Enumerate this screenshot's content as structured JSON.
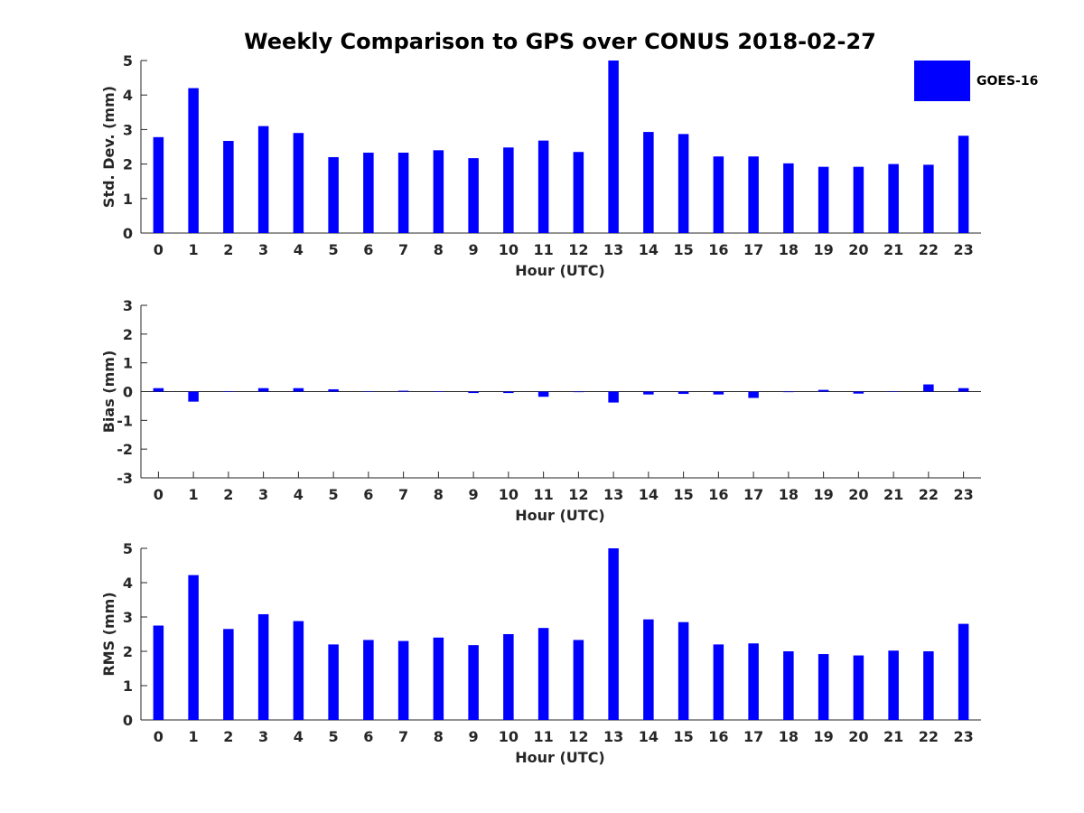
{
  "title": "Weekly Comparison to GPS over CONUS 2018-02-27",
  "legend": {
    "label": "GOES-16",
    "color": "#0000ff"
  },
  "chart_data": [
    {
      "type": "bar",
      "title": "Weekly Comparison to GPS over CONUS 2018-02-27",
      "xlabel": "Hour (UTC)",
      "ylabel": "Std. Dev. (mm)",
      "categories": [
        "0",
        "1",
        "2",
        "3",
        "4",
        "5",
        "6",
        "7",
        "8",
        "9",
        "10",
        "11",
        "12",
        "13",
        "14",
        "15",
        "16",
        "17",
        "18",
        "19",
        "20",
        "21",
        "22",
        "23"
      ],
      "ylim": [
        0,
        5
      ],
      "yticks": [
        "0",
        "1",
        "2",
        "3",
        "4",
        "5"
      ],
      "series": [
        {
          "name": "GOES-16",
          "color": "#0000ff",
          "values": [
            2.78,
            4.2,
            2.67,
            3.1,
            2.9,
            2.2,
            2.33,
            2.33,
            2.4,
            2.17,
            2.48,
            2.68,
            2.35,
            5.0,
            2.93,
            2.87,
            2.22,
            2.22,
            2.02,
            1.92,
            1.92,
            2.0,
            1.98,
            2.82
          ]
        }
      ]
    },
    {
      "type": "bar",
      "xlabel": "Hour (UTC)",
      "ylabel": "Bias (mm)",
      "categories": [
        "0",
        "1",
        "2",
        "3",
        "4",
        "5",
        "6",
        "7",
        "8",
        "9",
        "10",
        "11",
        "12",
        "13",
        "14",
        "15",
        "16",
        "17",
        "18",
        "19",
        "20",
        "21",
        "22",
        "23"
      ],
      "ylim": [
        -3,
        3
      ],
      "yticks": [
        "-3",
        "-2",
        "-1",
        "0",
        "1",
        "2",
        "3"
      ],
      "series": [
        {
          "name": "GOES-16",
          "color": "#0000ff",
          "values": [
            0.12,
            -0.35,
            -0.01,
            0.12,
            0.12,
            0.08,
            0.0,
            0.03,
            -0.01,
            -0.05,
            -0.05,
            -0.18,
            -0.02,
            -0.38,
            -0.1,
            -0.08,
            -0.1,
            -0.22,
            -0.02,
            0.06,
            -0.07,
            -0.01,
            0.25,
            0.12
          ]
        }
      ]
    },
    {
      "type": "bar",
      "xlabel": "Hour (UTC)",
      "ylabel": "RMS (mm)",
      "categories": [
        "0",
        "1",
        "2",
        "3",
        "4",
        "5",
        "6",
        "7",
        "8",
        "9",
        "10",
        "11",
        "12",
        "13",
        "14",
        "15",
        "16",
        "17",
        "18",
        "19",
        "20",
        "21",
        "22",
        "23"
      ],
      "ylim": [
        0,
        5
      ],
      "yticks": [
        "0",
        "1",
        "2",
        "3",
        "4",
        "5"
      ],
      "series": [
        {
          "name": "GOES-16",
          "color": "#0000ff",
          "values": [
            2.75,
            4.22,
            2.65,
            3.08,
            2.88,
            2.2,
            2.33,
            2.3,
            2.4,
            2.18,
            2.5,
            2.68,
            2.33,
            5.0,
            2.93,
            2.85,
            2.2,
            2.23,
            2.0,
            1.92,
            1.88,
            2.02,
            2.0,
            2.8
          ]
        }
      ]
    }
  ]
}
